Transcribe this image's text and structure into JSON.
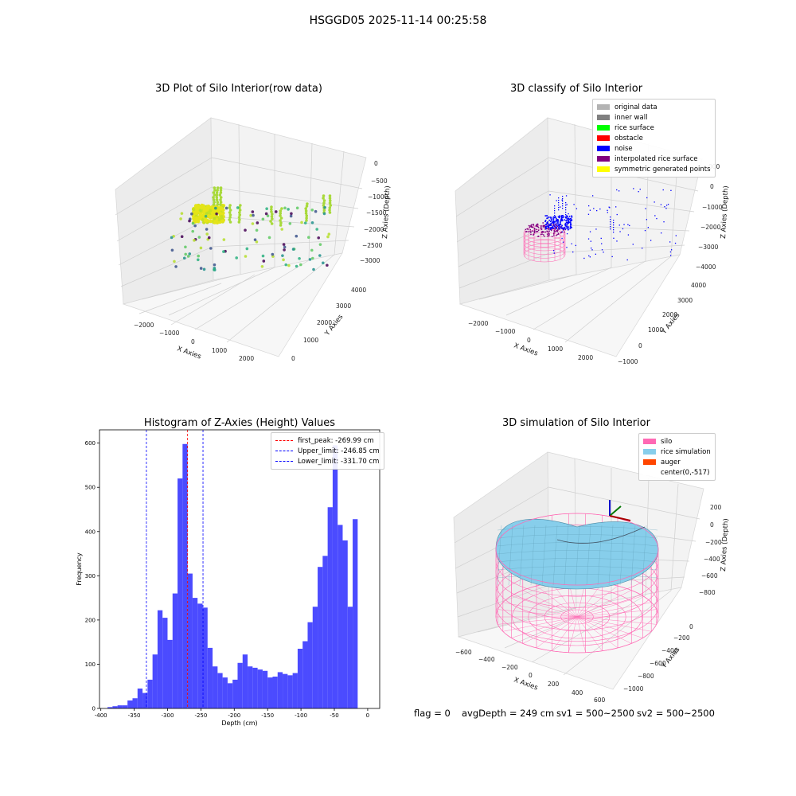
{
  "figure_title": "HSGGD05 2025-11-14 00:25:58",
  "footer": {
    "flag": "flag = 0",
    "avg_depth": "avgDepth = 249 cm",
    "sv1": "sv1 = 500~2500",
    "sv2": "sv2 = 500~2500"
  },
  "chart_data": [
    {
      "type": "scatter",
      "title": "3D Plot of Silo Interior(row data)",
      "xlabel": "X Axies",
      "ylabel": "Y Axies",
      "zlabel": "Z Axies (Depth)",
      "x_ticks": [
        "−2000",
        "−1000",
        "0",
        "1000",
        "2000"
      ],
      "y_ticks": [
        "0",
        "1000",
        "2000",
        "3000",
        "4000"
      ],
      "z_ticks": [
        "0",
        "−500",
        "−1000",
        "−1500",
        "−2000",
        "−2500",
        "−3000"
      ],
      "colormap": "viridis"
    },
    {
      "type": "scatter",
      "title": "3D classify of Silo Interior",
      "xlabel": "X Axies",
      "ylabel": "Y Axies",
      "zlabel": "Z Axies (Depth)",
      "x_ticks": [
        "−2000",
        "−1000",
        "0",
        "1000",
        "2000"
      ],
      "y_ticks": [
        "−1000",
        "0",
        "1000",
        "2000",
        "3000",
        "4000"
      ],
      "z_ticks": [
        "000",
        "0",
        "−1000",
        "−2000",
        "−3000",
        "−4000"
      ],
      "legend": [
        {
          "label": "original data",
          "color": "#b3b3b3"
        },
        {
          "label": "inner wall",
          "color": "#808080"
        },
        {
          "label": "rice surface",
          "color": "#00ff00"
        },
        {
          "label": "obstacle",
          "color": "#ff0000"
        },
        {
          "label": "noise",
          "color": "#0000ff"
        },
        {
          "label": "interpolated rice surface",
          "color": "#800080"
        },
        {
          "label": "symmetric generated points",
          "color": "#ffff00"
        }
      ]
    },
    {
      "type": "bar",
      "title": "Histogram of Z-Axies (Height) Values",
      "xlabel": "Depth (cm)",
      "ylabel": "Frequency",
      "xlim": [
        -402,
        18
      ],
      "ylim": [
        0,
        630
      ],
      "x_ticks": [
        -400,
        -350,
        -300,
        -250,
        -200,
        -150,
        -100,
        -50,
        0
      ],
      "y_ticks": [
        0,
        100,
        200,
        300,
        400,
        500,
        600
      ],
      "bin_width": 7.5,
      "bin_start": -390,
      "values": [
        3,
        5,
        7,
        7,
        18,
        23,
        45,
        35,
        65,
        122,
        222,
        205,
        155,
        260,
        520,
        598,
        305,
        250,
        237,
        228,
        137,
        95,
        80,
        70,
        57,
        65,
        103,
        122,
        95,
        92,
        88,
        85,
        70,
        72,
        82,
        78,
        75,
        80,
        135,
        152,
        195,
        230,
        320,
        345,
        455,
        595,
        415,
        380,
        230,
        428
      ],
      "bar_color": "#4b4bff",
      "lines": [
        {
          "label": "first_peak: -269.99 cm",
          "value": -269.99,
          "color": "#ff0000"
        },
        {
          "label": "Upper_limit: -246.85 cm",
          "value": -246.85,
          "color": "#0000ff"
        },
        {
          "label": "Lower_limit: -331.70 cm",
          "value": -331.7,
          "color": "#0000ff"
        }
      ]
    },
    {
      "type": "area",
      "title": "3D simulation of Silo Interior",
      "xlabel": "X Axies",
      "ylabel": "Y Axies",
      "zlabel": "Z Axies (Depth)",
      "x_ticks": [
        "−600",
        "−400",
        "−200",
        "0",
        "200",
        "400",
        "600"
      ],
      "y_ticks": [
        "0",
        "−200",
        "−400",
        "−600",
        "−800",
        "−1000"
      ],
      "z_ticks": [
        "200",
        "0",
        "−200",
        "−400",
        "−600",
        "−800"
      ],
      "legend": [
        {
          "label": "silo",
          "color": "#ff69b4"
        },
        {
          "label": "rice simulation",
          "color": "#87ceeb"
        },
        {
          "label": "auger",
          "color": "#ff4500"
        },
        {
          "label": "center(0,-517)",
          "color": "#ffffff"
        }
      ]
    }
  ]
}
